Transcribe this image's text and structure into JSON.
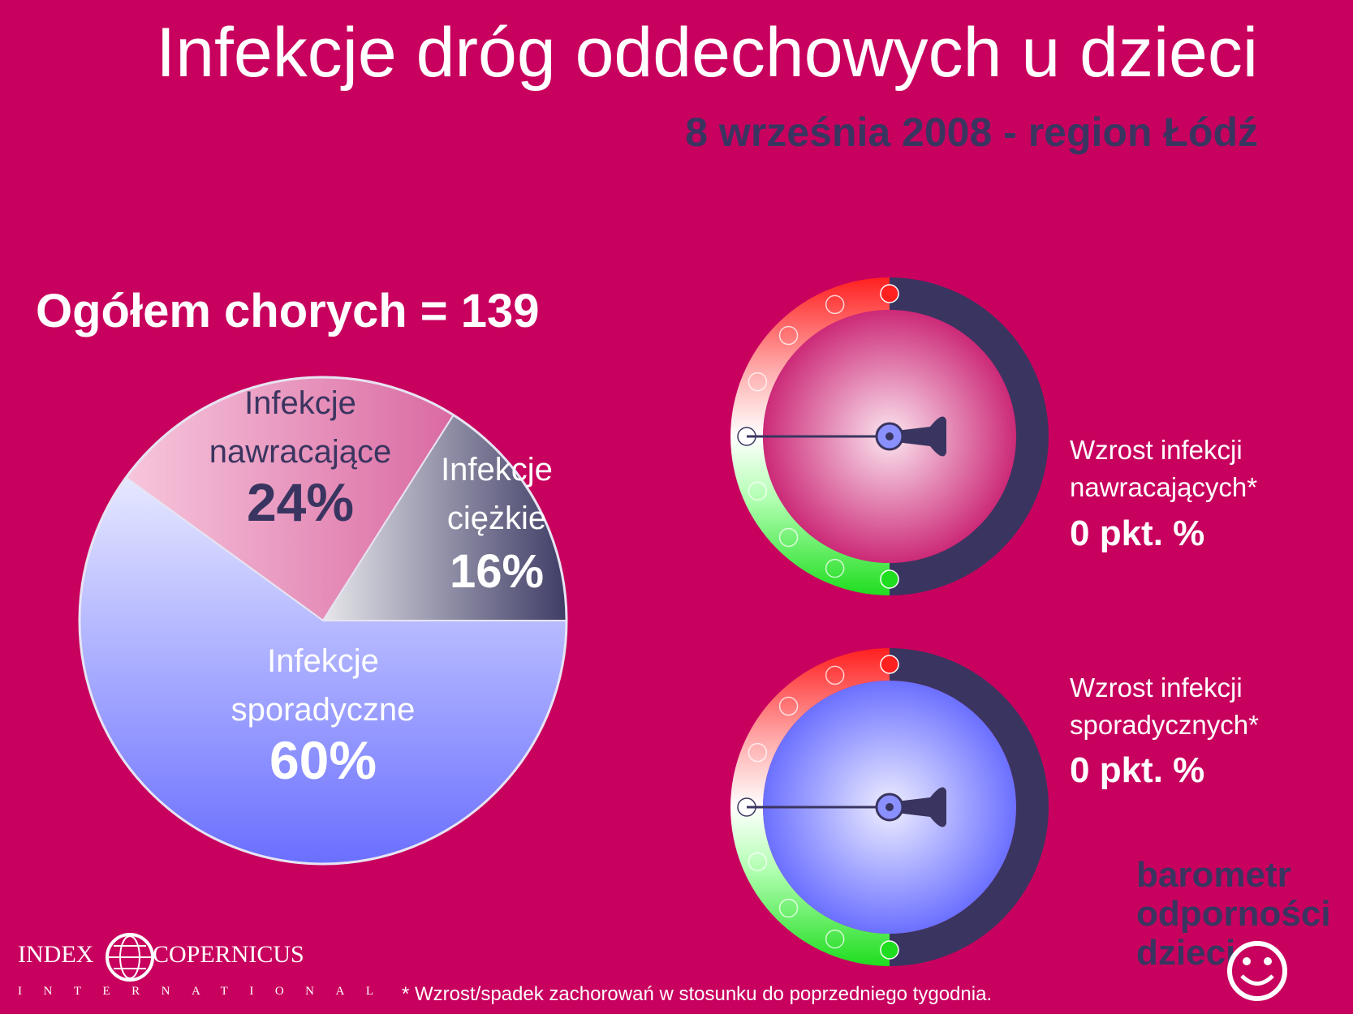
{
  "header": {
    "title": "Infekcje dróg oddechowych u dzieci",
    "subtitle": "8 września 2008 - region Łódź"
  },
  "total_label": "Ogółem chorych = 139",
  "chart_data": {
    "type": "pie",
    "title": "",
    "slices": [
      {
        "label_lines": [
          "Infekcje",
          "nawracające"
        ],
        "value": 24,
        "value_label": "24%",
        "color": "#e58bb5"
      },
      {
        "label_lines": [
          "Infekcje",
          "ciężkie"
        ],
        "value": 16,
        "value_label": "16%",
        "color": "#7d7ea1"
      },
      {
        "label_lines": [
          "Infekcje",
          "sporadyczne"
        ],
        "value": 60,
        "value_label": "60%",
        "color": "#9fa4ff"
      }
    ]
  },
  "gauges": [
    {
      "label_line1": "Wzrost infekcji",
      "label_line2": "nawracających*",
      "value_label": "0 pkt. %",
      "value": 0,
      "face_color": "#d9468a"
    },
    {
      "label_line1": "Wzrost infekcji",
      "label_line2": "sporadycznych*",
      "value_label": "0 pkt. %",
      "value": 0,
      "face_color": "#7c80ff"
    }
  ],
  "brand": {
    "line1": "barometr",
    "line2": "odporności",
    "line3": "dzieci"
  },
  "logo": {
    "left": "INDEX",
    "right": "COPERNICUS",
    "bottom": "INTERNATIONAL"
  },
  "footnote": "* Wzrost/spadek zachorowań w stosunku do poprzedniego tygodnia.",
  "colors": {
    "background": "#c8005e",
    "dark": "#3a3560",
    "red": "#ff2a2a",
    "green": "#22dd22"
  }
}
